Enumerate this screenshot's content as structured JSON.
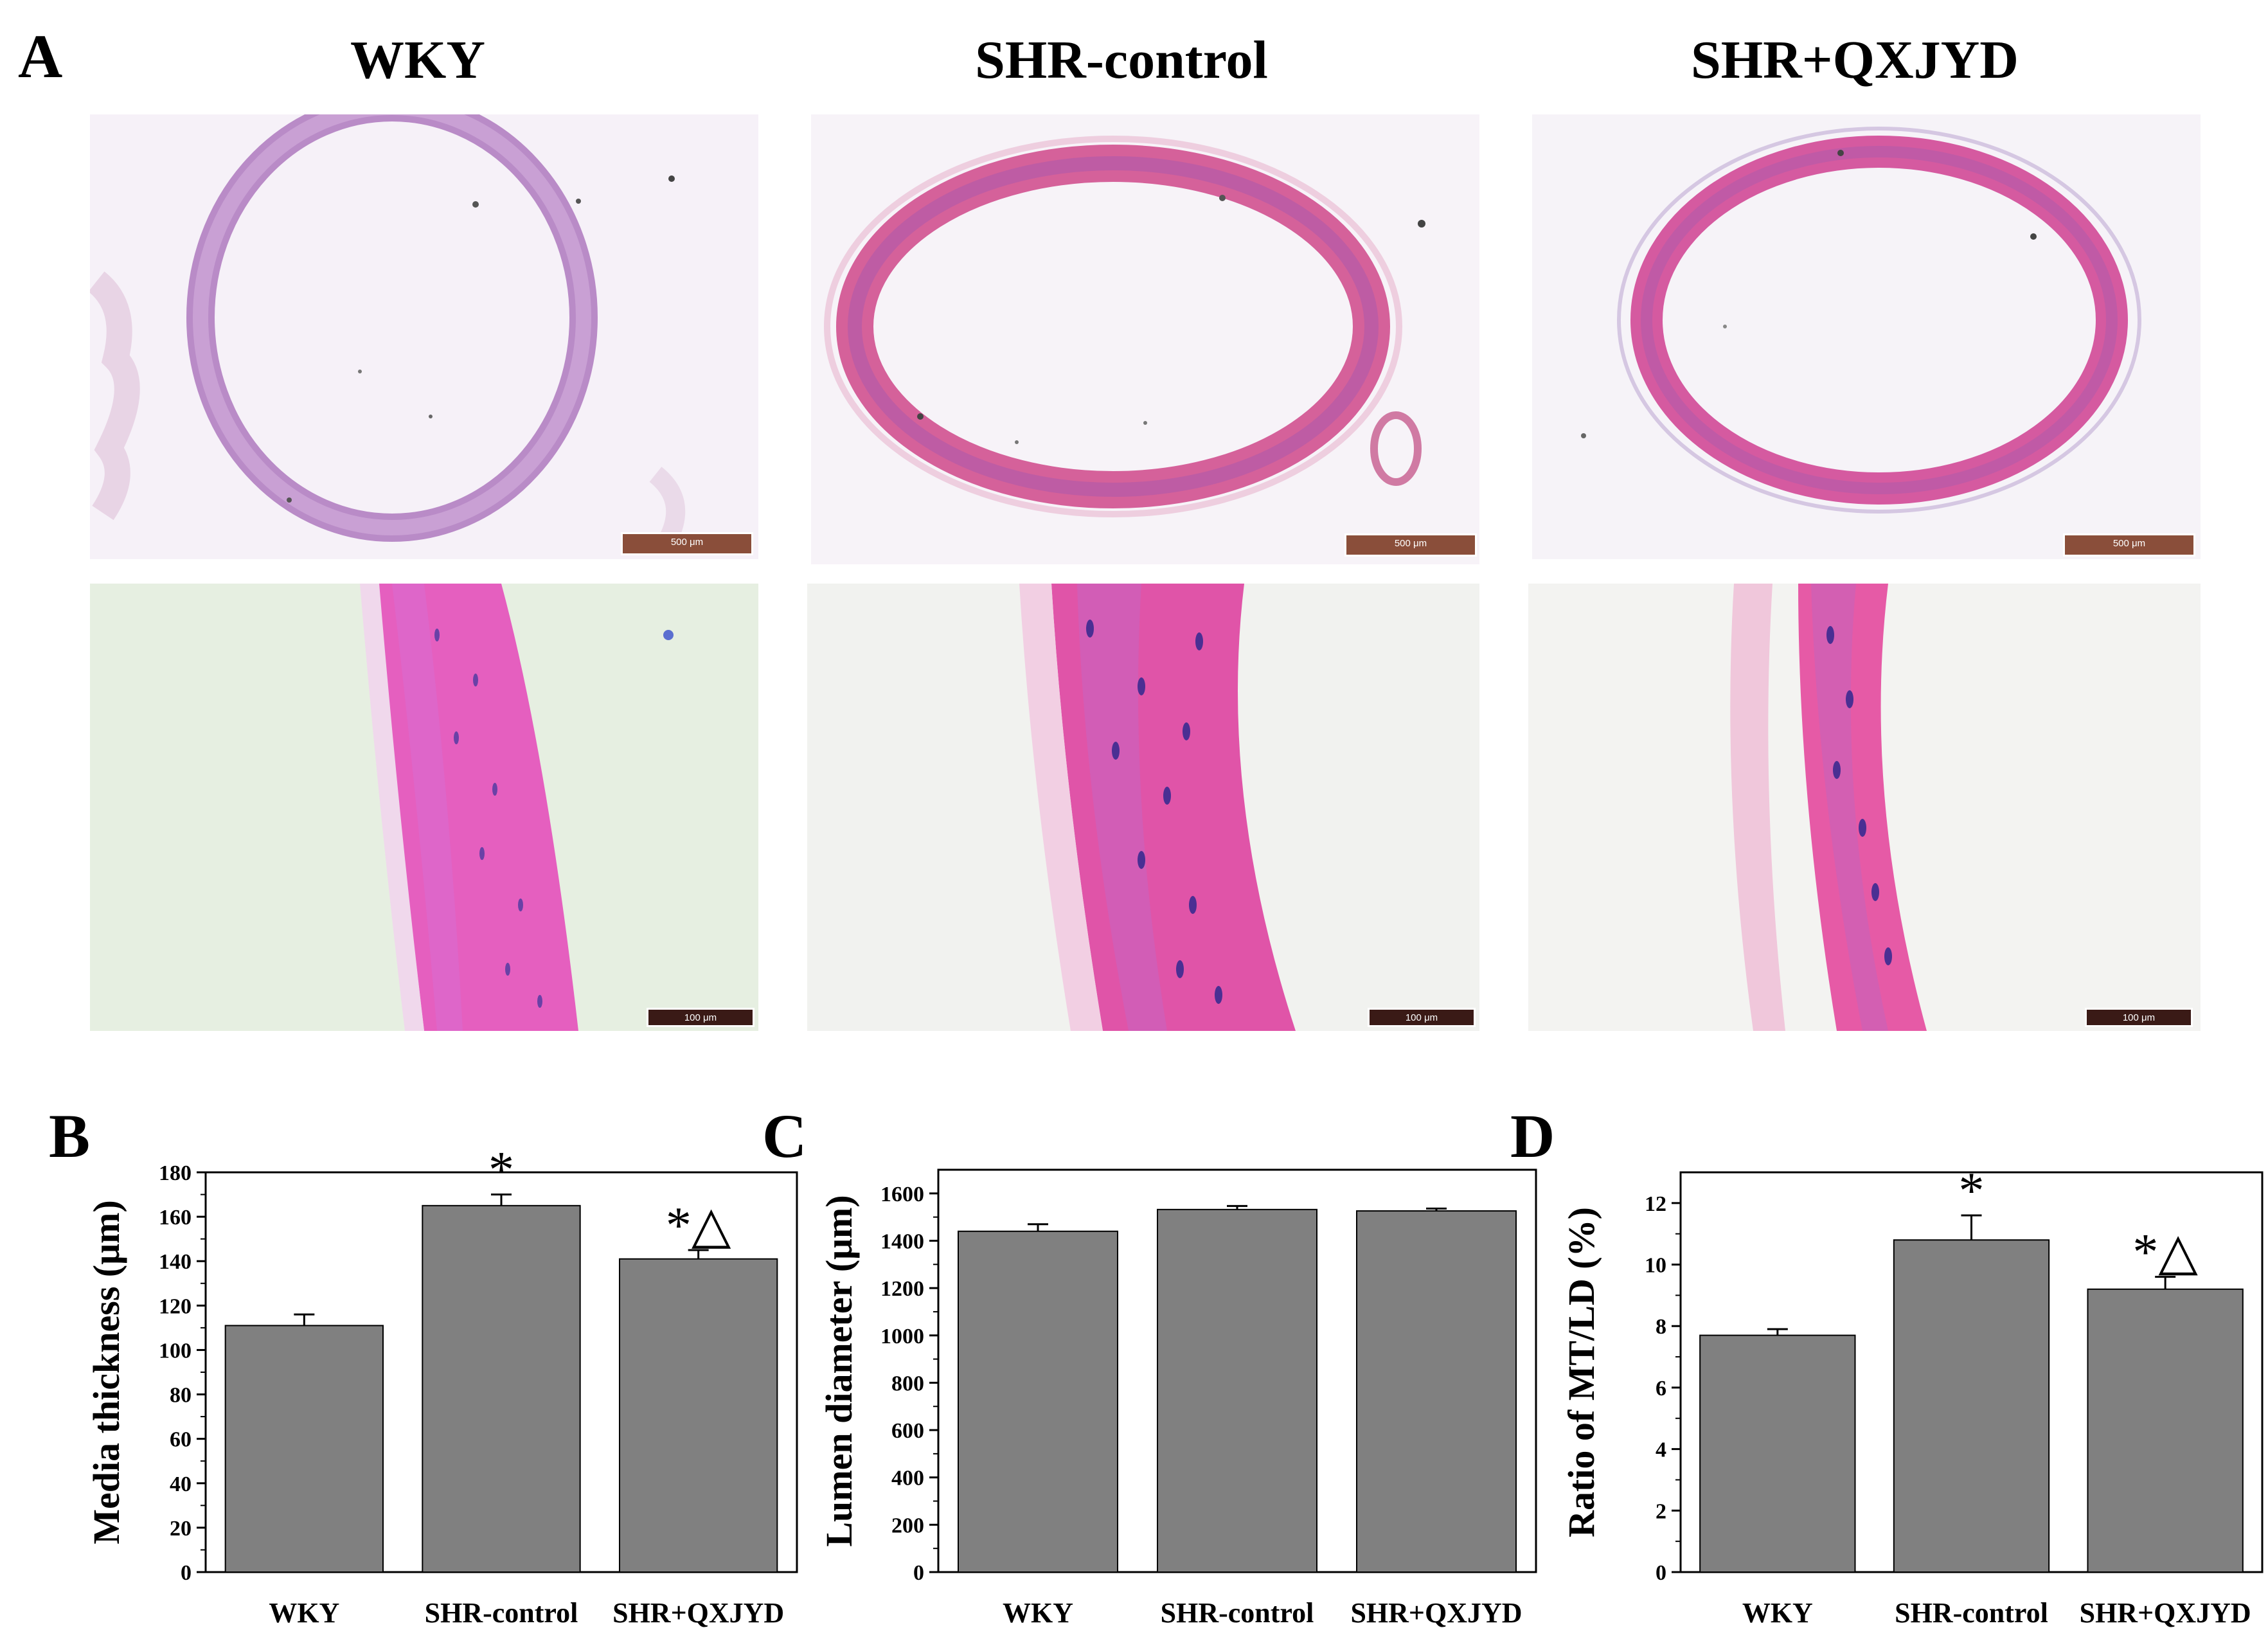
{
  "panel_a": {
    "letter": "A",
    "columns": [
      "WKY",
      "SHR-control",
      "SHR+QXJYD"
    ],
    "scalebars": {
      "top": "500 μm",
      "bottom": "100 μm"
    }
  },
  "chart_data": [
    {
      "panel": "B",
      "type": "bar",
      "categories": [
        "WKY",
        "SHR-control",
        "SHR+QXJYD"
      ],
      "values": [
        111,
        165,
        141
      ],
      "errors": [
        5,
        5,
        4
      ],
      "annotations": [
        "",
        "*",
        "*△"
      ],
      "ylabel": "Media thickness (μm)",
      "ylim": [
        0,
        180
      ],
      "yticks": [
        0,
        20,
        40,
        60,
        80,
        100,
        120,
        140,
        160,
        180
      ],
      "bar_color": "#808080"
    },
    {
      "panel": "C",
      "type": "bar",
      "categories": [
        "WKY",
        "SHR-control",
        "SHR+QXJYD"
      ],
      "values": [
        1440,
        1532,
        1526
      ],
      "errors": [
        30,
        15,
        10
      ],
      "annotations": [
        "",
        "",
        ""
      ],
      "ylabel": "Lumen diameter (μm)",
      "ylim": [
        0,
        1700
      ],
      "yticks": [
        0,
        200,
        400,
        600,
        800,
        1000,
        1200,
        1400,
        1600
      ],
      "bar_color": "#808080"
    },
    {
      "panel": "D",
      "type": "bar",
      "categories": [
        "WKY",
        "SHR-control",
        "SHR+QXJYD"
      ],
      "values": [
        7.7,
        10.8,
        9.2
      ],
      "errors": [
        0.2,
        0.8,
        0.4
      ],
      "annotations": [
        "",
        "*",
        "*△"
      ],
      "ylabel": "Ratio of MT/LD (%)",
      "ylim": [
        0,
        13
      ],
      "yticks": [
        0,
        2,
        4,
        6,
        8,
        10,
        12
      ],
      "bar_color": "#808080"
    }
  ]
}
